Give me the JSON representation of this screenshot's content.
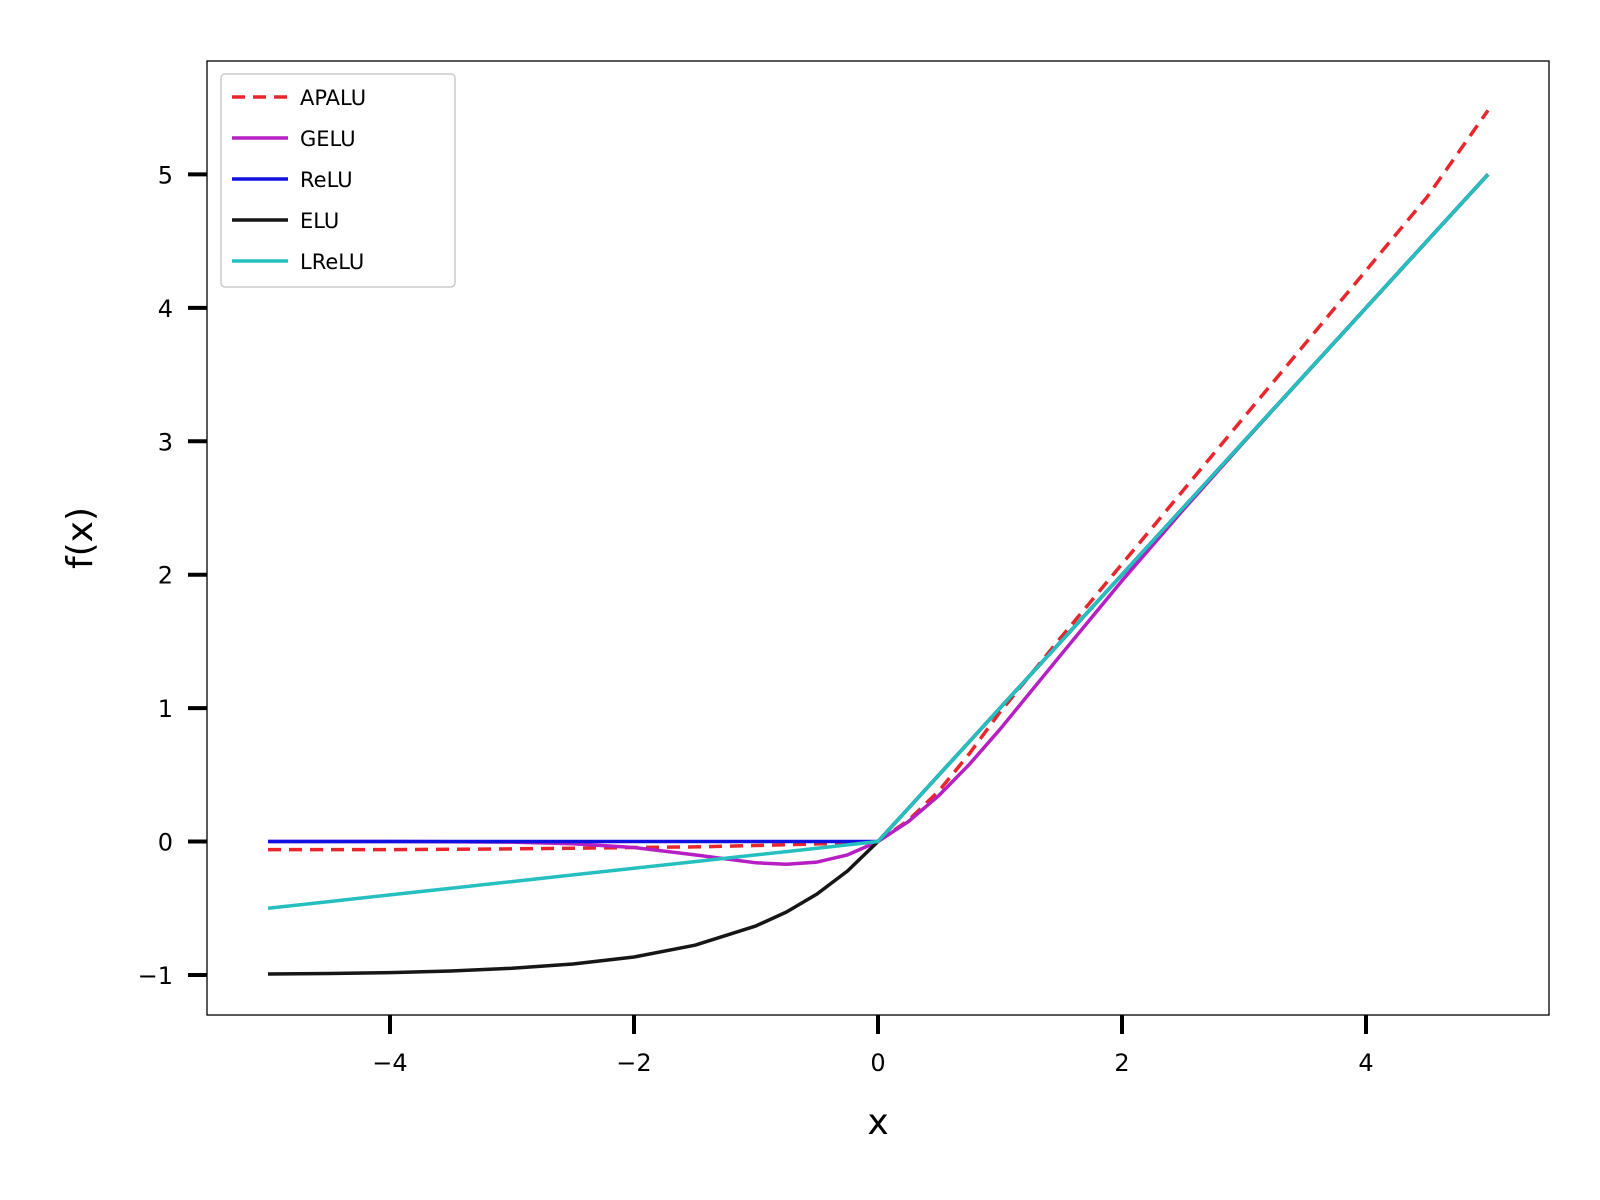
{
  "chart_data": {
    "type": "line",
    "title": "",
    "xlabel": "x",
    "ylabel": "f(x)",
    "xlim": [
      -5.5,
      5.5
    ],
    "ylim": [
      -1.3,
      5.85
    ],
    "xticks": [
      -4,
      -2,
      0,
      2,
      4
    ],
    "yticks": [
      -1,
      0,
      1,
      2,
      3,
      4,
      5
    ],
    "xtick_labels": [
      "−4",
      "−2",
      "0",
      "2",
      "4"
    ],
    "ytick_labels": [
      "−1",
      "0",
      "1",
      "2",
      "3",
      "4",
      "5"
    ],
    "grid": false,
    "legend_position": "top-left",
    "x": [
      -5.0,
      -4.5,
      -4.0,
      -3.5,
      -3.0,
      -2.5,
      -2.0,
      -1.5,
      -1.0,
      -0.75,
      -0.5,
      -0.25,
      0.0,
      0.25,
      0.5,
      0.75,
      1.0,
      1.5,
      2.0,
      2.5,
      3.0,
      3.5,
      4.0,
      4.5,
      5.0
    ],
    "series": [
      {
        "name": "APALU",
        "color": "#e8262b",
        "dashed": true,
        "values": [
          -0.06,
          -0.06,
          -0.06,
          -0.058,
          -0.055,
          -0.05,
          -0.045,
          -0.04,
          -0.03,
          -0.024,
          -0.018,
          -0.01,
          0.0,
          0.16,
          0.38,
          0.66,
          0.97,
          1.53,
          2.08,
          2.63,
          3.18,
          3.73,
          4.28,
          4.83,
          5.48
        ]
      },
      {
        "name": "GELU",
        "color": "#b51fc4",
        "dashed": false,
        "values": [
          0.0,
          0.0,
          0.0,
          -0.001,
          -0.004,
          -0.016,
          -0.045,
          -0.1,
          -0.159,
          -0.17,
          -0.154,
          -0.1,
          0.0,
          0.15,
          0.346,
          0.58,
          0.841,
          1.4,
          1.955,
          2.484,
          2.996,
          3.499,
          4.0,
          4.5,
          5.0
        ]
      },
      {
        "name": "ReLU",
        "color": "#1010e0",
        "dashed": false,
        "values": [
          0.0,
          0.0,
          0.0,
          0.0,
          0.0,
          0.0,
          0.0,
          0.0,
          0.0,
          0.0,
          0.0,
          0.0,
          0.0,
          0.25,
          0.5,
          0.75,
          1.0,
          1.5,
          2.0,
          2.5,
          3.0,
          3.5,
          4.0,
          4.5,
          5.0
        ]
      },
      {
        "name": "ELU",
        "color": "#161616",
        "dashed": false,
        "values": [
          -0.993,
          -0.989,
          -0.982,
          -0.97,
          -0.95,
          -0.918,
          -0.865,
          -0.777,
          -0.632,
          -0.528,
          -0.393,
          -0.221,
          0.0,
          0.25,
          0.5,
          0.75,
          1.0,
          1.5,
          2.0,
          2.5,
          3.0,
          3.5,
          4.0,
          4.5,
          5.0
        ]
      },
      {
        "name": "LReLU",
        "color": "#26bfc0",
        "dashed": false,
        "values": [
          -0.5,
          -0.45,
          -0.4,
          -0.35,
          -0.3,
          -0.25,
          -0.2,
          -0.15,
          -0.1,
          -0.075,
          -0.05,
          -0.025,
          0.0,
          0.25,
          0.5,
          0.75,
          1.0,
          1.5,
          2.0,
          2.5,
          3.0,
          3.5,
          4.0,
          4.5,
          5.0
        ]
      }
    ]
  }
}
